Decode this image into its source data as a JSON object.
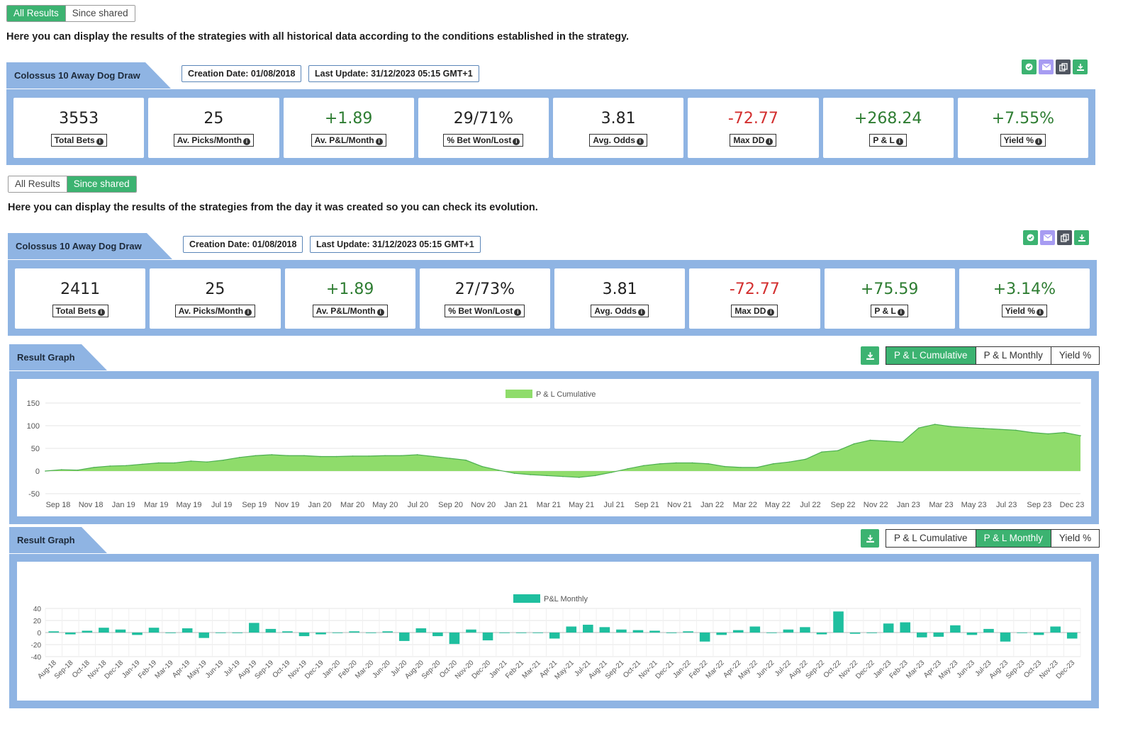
{
  "section1": {
    "toggle": {
      "all": "All Results",
      "since": "Since shared"
    },
    "description": "Here you can display the results of the strategies with all historical data according to the conditions established in the strategy.",
    "strategy_name": "Colossus 10 Away Dog Draw",
    "creation_date": "Creation Date: 01/08/2018",
    "last_update": "Last Update: 31/12/2023 05:15 GMT+1",
    "stats": [
      {
        "value": "3553",
        "label": "Total Bets",
        "tone": "neu"
      },
      {
        "value": "25",
        "label": "Av. Picks/Month",
        "tone": "neu"
      },
      {
        "value": "+1.89",
        "label": "Av. P&L/Month",
        "tone": "pos"
      },
      {
        "value": "29/71%",
        "label": "% Bet Won/Lost",
        "tone": "neu"
      },
      {
        "value": "3.81",
        "label": "Avg. Odds",
        "tone": "neu"
      },
      {
        "value": "-72.77",
        "label": "Max DD",
        "tone": "neg"
      },
      {
        "value": "+268.24",
        "label": "P & L",
        "tone": "pos"
      },
      {
        "value": "+7.55%",
        "label": "Yield %",
        "tone": "pos"
      }
    ]
  },
  "section2": {
    "toggle": {
      "all": "All Results",
      "since": "Since shared"
    },
    "description": "Here you can display the results of the strategies from the day it was created so you can check its evolution.",
    "strategy_name": "Colossus 10 Away Dog Draw",
    "creation_date": "Creation Date: 01/08/2018",
    "last_update": "Last Update: 31/12/2023 05:15 GMT+1",
    "stats": [
      {
        "value": "2411",
        "label": "Total Bets",
        "tone": "neu"
      },
      {
        "value": "25",
        "label": "Av. Picks/Month",
        "tone": "neu"
      },
      {
        "value": "+1.89",
        "label": "Av. P&L/Month",
        "tone": "pos"
      },
      {
        "value": "27/73%",
        "label": "% Bet Won/Lost",
        "tone": "neu"
      },
      {
        "value": "3.81",
        "label": "Avg. Odds",
        "tone": "neu"
      },
      {
        "value": "-72.77",
        "label": "Max DD",
        "tone": "neg"
      },
      {
        "value": "+75.59",
        "label": "P & L",
        "tone": "pos"
      },
      {
        "value": "+3.14%",
        "label": "Yield %",
        "tone": "pos"
      }
    ]
  },
  "graph1": {
    "title": "Result Graph",
    "tabs": [
      "P & L Cumulative",
      "P & L Monthly",
      "Yield %"
    ],
    "active_tab": 0
  },
  "graph2": {
    "title": "Result Graph",
    "tabs": [
      "P & L Cumulative",
      "P & L Monthly",
      "Yield %"
    ],
    "active_tab": 1
  },
  "colors": {
    "accent_green": "#3cb371",
    "panel_blue": "#8fb4e3",
    "area_green": "#8fdc6b",
    "bar_teal": "#1fbf9f",
    "negative_red": "#d32f2f",
    "positive_green": "#2e7d32"
  },
  "chart_data": [
    {
      "type": "area",
      "legend": "P & L Cumulative",
      "legend_position": "top-center",
      "grid": true,
      "ylim": [
        -50,
        150
      ],
      "yticks": [
        150,
        100,
        50,
        0,
        -50
      ],
      "xticks": [
        "Sep 18",
        "Nov 18",
        "Jan 19",
        "Mar 19",
        "May 19",
        "Jul 19",
        "Sep 19",
        "Nov 19",
        "Jan 20",
        "Mar 20",
        "May 20",
        "Jul 20",
        "Sep 20",
        "Nov 20",
        "Jan 21",
        "Mar 21",
        "May 21",
        "Jul 21",
        "Sep 21",
        "Nov 21",
        "Jan 22",
        "Mar 22",
        "May 22",
        "Jul 22",
        "Sep 22",
        "Nov 22",
        "Jan 23",
        "Mar 23",
        "May 23",
        "Jul 23",
        "Sep 23",
        "Dec 23"
      ],
      "x": [
        "Aug 18",
        "Sep 18",
        "Oct 18",
        "Nov 18",
        "Dec 18",
        "Jan 19",
        "Feb 19",
        "Mar 19",
        "Apr 19",
        "May 19",
        "Jun 19",
        "Jul 19",
        "Aug 19",
        "Sep 19",
        "Oct 19",
        "Nov 19",
        "Dec 19",
        "Jan 20",
        "Feb 20",
        "Mar 20",
        "Apr 20",
        "May 20",
        "Jun 20",
        "Jul 20",
        "Aug 20",
        "Sep 20",
        "Oct 20",
        "Nov 20",
        "Dec 20",
        "Jan 21",
        "Feb 21",
        "Mar 21",
        "Apr 21",
        "May 21",
        "Jun 21",
        "Jul 21",
        "Aug 21",
        "Sep 21",
        "Oct 21",
        "Nov 21",
        "Dec 21",
        "Jan 22",
        "Feb 22",
        "Mar 22",
        "Apr 22",
        "May 22",
        "Jun 22",
        "Jul 22",
        "Aug 22",
        "Sep 22",
        "Oct 22",
        "Nov 22",
        "Dec 22",
        "Jan 23",
        "Feb 23",
        "Mar 23",
        "Apr 23",
        "May 23",
        "Jun 23",
        "Jul 23",
        "Aug 23",
        "Sep 23",
        "Oct 23",
        "Nov 23",
        "Dec 23"
      ],
      "values": [
        0,
        3,
        2,
        8,
        11,
        12,
        15,
        18,
        18,
        22,
        20,
        24,
        30,
        34,
        36,
        34,
        34,
        32,
        32,
        33,
        33,
        34,
        34,
        36,
        32,
        28,
        24,
        10,
        2,
        -5,
        -8,
        -10,
        -12,
        -14,
        -10,
        -3,
        5,
        12,
        16,
        18,
        18,
        16,
        10,
        8,
        8,
        16,
        20,
        26,
        42,
        45,
        60,
        68,
        66,
        64,
        95,
        103,
        98,
        96,
        94,
        92,
        90,
        85,
        82,
        85,
        78
      ]
    },
    {
      "type": "bar",
      "legend": "P&L Monthly",
      "legend_position": "top-center",
      "grid": true,
      "ylim": [
        -40,
        40
      ],
      "yticks": [
        40,
        20,
        0,
        -20,
        -40
      ],
      "categories": [
        "Aug-18",
        "Sep-18",
        "Oct-18",
        "Nov-18",
        "Dec-18",
        "Jan-19",
        "Feb-19",
        "Mar-19",
        "Apr-19",
        "May-19",
        "Jun-19",
        "Jul-19",
        "Aug-19",
        "Sep-19",
        "Oct-19",
        "Nov-19",
        "Dec-19",
        "Jan-20",
        "Feb-20",
        "Mar-20",
        "Jun-20",
        "Jul-20",
        "Aug-20",
        "Sep-20",
        "Oct-20",
        "Nov-20",
        "Dec-20",
        "Jan-21",
        "Feb-21",
        "Mar-21",
        "Apr-21",
        "May-21",
        "Jul-21",
        "Aug-21",
        "Sep-21",
        "Oct-21",
        "Nov-21",
        "Dec-21",
        "Jan-22",
        "Feb-22",
        "Mar-22",
        "Apr-22",
        "May-22",
        "Jun-22",
        "Jul-22",
        "Aug-22",
        "Sep-22",
        "Oct-22",
        "Nov-22",
        "Dec-22",
        "Jan-23",
        "Feb-23",
        "Mar-23",
        "Apr-23",
        "May-23",
        "Jun-23",
        "Jul-23",
        "Aug-23",
        "Sep-23",
        "Oct-23",
        "Nov-23",
        "Dec-23"
      ],
      "values": [
        2,
        -3,
        3,
        8,
        5,
        -4,
        8,
        -1,
        7,
        -9,
        0,
        -1,
        16,
        6,
        2,
        -6,
        -3,
        0,
        2,
        0,
        2,
        -14,
        7,
        -6,
        -19,
        5,
        -13,
        0,
        0,
        0,
        -10,
        10,
        13,
        9,
        5,
        4,
        3,
        -1,
        2,
        -15,
        -4,
        4,
        10,
        0,
        5,
        9,
        -3,
        35,
        -2,
        -1,
        15,
        17,
        -8,
        -7,
        12,
        -4,
        6,
        -15,
        0,
        -4,
        10,
        -10
      ]
    }
  ]
}
